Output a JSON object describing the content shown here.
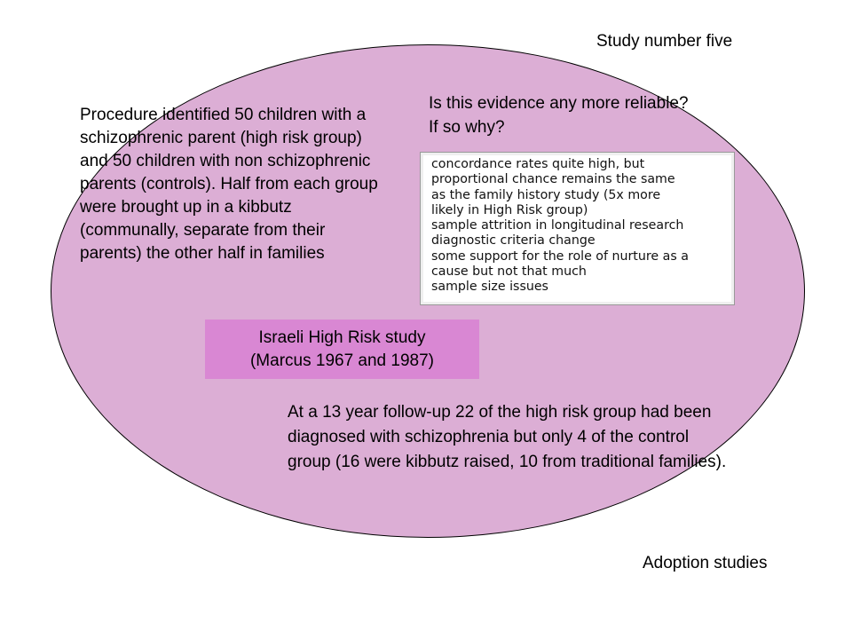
{
  "slide": {
    "title": "Study number five",
    "footer": "Adoption studies"
  },
  "question": "Is this evidence any more reliable? If so why?",
  "procedure": "Procedure identified 50 children with a schizophrenic parent (high risk group) and 50 children with non schizophrenic parents (controls). Half from each group were brought up in a kibbutz (communally, separate from their parents)  the other half in families",
  "notes": {
    "lines": [
      "concordance rates quite high, but",
      "proportional chance remains the same",
      "as the family history study (5x more",
      "likely in High Risk group)",
      "sample attrition in longitudinal research",
      "diagnostic criteria change",
      "some support for the role of nurture as a",
      "cause but not that much",
      "sample size issues"
    ]
  },
  "study_label": {
    "line1": "Israeli High Risk study",
    "line2": "(Marcus 1967 and 1987)"
  },
  "followup": "At a 13 year follow-up 22 of the high risk group had been diagnosed with schizophrenia but only 4 of the control group (16 were kibbutz raised, 10 from traditional families).",
  "colors": {
    "ellipse_fill": "#dcaed5",
    "label_fill": "#d987d3"
  }
}
